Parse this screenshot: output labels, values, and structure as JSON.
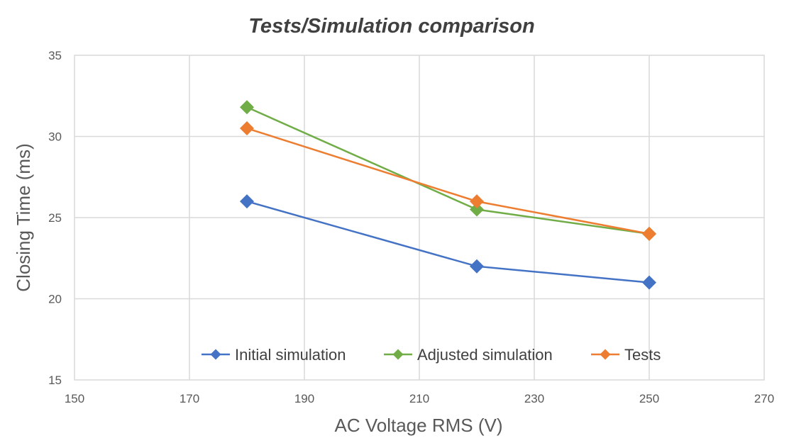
{
  "chart_data": {
    "type": "line",
    "title": "Tests/Simulation comparison",
    "xlabel": "AC Voltage RMS (V)",
    "ylabel": "Closing Time (ms)",
    "xlim": [
      150,
      270
    ],
    "ylim": [
      15,
      35
    ],
    "xticks": [
      "150",
      "170",
      "190",
      "210",
      "230",
      "250",
      "270"
    ],
    "yticks": [
      "15",
      "20",
      "25",
      "30",
      "35"
    ],
    "grid": true,
    "legend_position": "bottom-inside",
    "series": [
      {
        "name": "Initial simulation",
        "color": "#4472c4",
        "x": [
          180,
          220,
          250
        ],
        "values": [
          26,
          22,
          21
        ]
      },
      {
        "name": "Adjusted simulation",
        "color": "#70ad47",
        "x": [
          180,
          220,
          250
        ],
        "values": [
          31.8,
          25.5,
          24
        ]
      },
      {
        "name": "Tests",
        "color": "#ed7d31",
        "x": [
          180,
          220,
          250
        ],
        "values": [
          30.5,
          26,
          24
        ]
      }
    ]
  }
}
